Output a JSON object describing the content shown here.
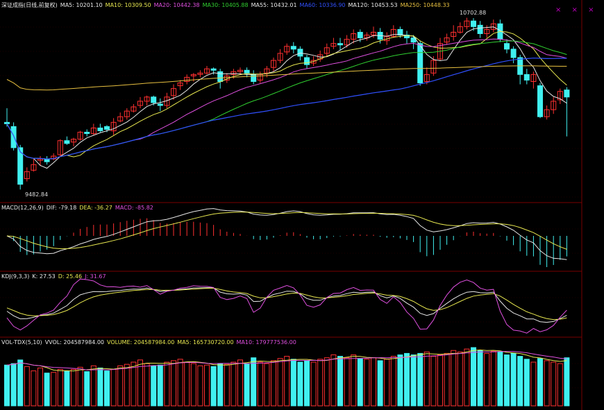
{
  "main": {
    "legend": [
      {
        "text": "深证成指(日线,前复权)",
        "color": "#e8e8e8"
      },
      {
        "text": "MA5: 10201.10",
        "color": "#e8e8e8"
      },
      {
        "text": "MA10: 10309.50",
        "color": "#e8e850"
      },
      {
        "text": "MA20: 10442.38",
        "color": "#e050e0"
      },
      {
        "text": "MA30: 10405.88",
        "color": "#30d030"
      },
      {
        "text": "MA55: 10432.01",
        "color": "#e8e8e8"
      },
      {
        "text": "MA60: 10336.90",
        "color": "#3050ff"
      },
      {
        "text": "MA120: 10453.53",
        "color": "#e8e8e8"
      },
      {
        "text": "MA250: 10448.33",
        "color": "#e8c040"
      }
    ],
    "high_label": "10702.88",
    "low_label": "9482.84"
  },
  "macd": {
    "legend": [
      {
        "text": "MACD(12,26,9)",
        "color": "#e8e8e8"
      },
      {
        "text": "DIF: -79.18",
        "color": "#e8e8e8"
      },
      {
        "text": "DEA: -36.27",
        "color": "#e8e850"
      },
      {
        "text": "MACD: -85.82",
        "color": "#e050e0"
      }
    ]
  },
  "kdj": {
    "legend": [
      {
        "text": "KDJ(9,3,3)",
        "color": "#e8e8e8"
      },
      {
        "text": "K: 27.53",
        "color": "#e8e8e8"
      },
      {
        "text": "D: 25.46",
        "color": "#e8e850"
      },
      {
        "text": "J: 31.67",
        "color": "#e050e0"
      }
    ]
  },
  "vol": {
    "legend": [
      {
        "text": "VOL-TDX(5,10)",
        "color": "#e8e8e8"
      },
      {
        "text": "VVOL: 204587984.00",
        "color": "#e8e8e8"
      },
      {
        "text": "VOLUME: 204587984.00",
        "color": "#e8e850"
      },
      {
        "text": "MA5: 165730720.00",
        "color": "#e8e850"
      },
      {
        "text": "MA10: 179777536.00",
        "color": "#e050e0"
      }
    ]
  },
  "chart_data": {
    "type": "candlestick",
    "colors": {
      "up": "#ff3030",
      "down": "#40f0f0",
      "ma5": "#e8e8e8",
      "ma10": "#e8e850",
      "ma20": "#e050e0",
      "ma30": "#30d030",
      "ma60": "#3050ff",
      "ma250": "#e8c040"
    },
    "candles": [
      [
        9960,
        9950,
        10060,
        9930
      ],
      [
        9930,
        9780,
        9960,
        9760
      ],
      [
        9780,
        9520,
        9800,
        9482.84
      ],
      [
        9560,
        9610,
        9640,
        9540
      ],
      [
        9620,
        9660,
        9700,
        9610
      ],
      [
        9690,
        9700,
        9720,
        9650
      ],
      [
        9700,
        9680,
        9720,
        9660
      ],
      [
        9700,
        9720,
        9740,
        9690
      ],
      [
        9730,
        9830,
        9840,
        9720
      ],
      [
        9830,
        9810,
        9860,
        9800
      ],
      [
        9820,
        9840,
        9850,
        9790
      ],
      [
        9840,
        9890,
        9900,
        9830
      ],
      [
        9890,
        9880,
        9910,
        9860
      ],
      [
        9880,
        9920,
        9950,
        9870
      ],
      [
        9920,
        9900,
        9950,
        9890
      ],
      [
        9930,
        9910,
        9940,
        9890
      ],
      [
        9900,
        9960,
        9990,
        9870
      ],
      [
        9970,
        10000,
        10030,
        9960
      ],
      [
        10000,
        10040,
        10060,
        9980
      ],
      [
        10040,
        10070,
        10090,
        10030
      ],
      [
        10080,
        10110,
        10140,
        10060
      ],
      [
        10110,
        10140,
        10150,
        10080
      ],
      [
        10140,
        10100,
        10150,
        10080
      ],
      [
        10090,
        10080,
        10130,
        10040
      ],
      [
        10080,
        10140,
        10170,
        10060
      ],
      [
        10150,
        10200,
        10230,
        10120
      ],
      [
        10220,
        10240,
        10260,
        10190
      ],
      [
        10250,
        10280,
        10300,
        10230
      ],
      [
        10290,
        10300,
        10310,
        10250
      ],
      [
        10300,
        10310,
        10330,
        10280
      ],
      [
        10310,
        10340,
        10360,
        10300
      ],
      [
        10340,
        10330,
        10350,
        10300
      ],
      [
        10320,
        10250,
        10340,
        10200
      ],
      [
        10260,
        10290,
        10310,
        10240
      ],
      [
        10300,
        10320,
        10340,
        10270
      ],
      [
        10320,
        10330,
        10350,
        10300
      ],
      [
        10330,
        10310,
        10350,
        10280
      ],
      [
        10300,
        10250,
        10330,
        10230
      ],
      [
        10260,
        10300,
        10320,
        10240
      ],
      [
        10310,
        10340,
        10360,
        10280
      ],
      [
        10350,
        10400,
        10420,
        10320
      ],
      [
        10400,
        10450,
        10480,
        10380
      ],
      [
        10460,
        10500,
        10520,
        10440
      ],
      [
        10500,
        10480,
        10530,
        10450
      ],
      [
        10480,
        10430,
        10500,
        10400
      ],
      [
        10420,
        10370,
        10440,
        10340
      ],
      [
        10380,
        10400,
        10430,
        10360
      ],
      [
        10410,
        10440,
        10470,
        10390
      ],
      [
        10450,
        10490,
        10520,
        10430
      ],
      [
        10500,
        10520,
        10560,
        10480
      ],
      [
        10520,
        10510,
        10560,
        10470
      ],
      [
        10510,
        10550,
        10580,
        10490
      ],
      [
        10550,
        10590,
        10620,
        10520
      ],
      [
        10600,
        10560,
        10620,
        10530
      ],
      [
        10560,
        10580,
        10600,
        10540
      ],
      [
        10580,
        10600,
        10640,
        10560
      ],
      [
        10600,
        10550,
        10630,
        10520
      ],
      [
        10540,
        10570,
        10600,
        10510
      ],
      [
        10570,
        10620,
        10650,
        10560
      ],
      [
        10620,
        10580,
        10640,
        10560
      ],
      [
        10580,
        10560,
        10610,
        10520
      ],
      [
        10560,
        10530,
        10580,
        10480
      ],
      [
        10520,
        10240,
        10540,
        10220
      ],
      [
        10250,
        10300,
        10350,
        10230
      ],
      [
        10310,
        10400,
        10430,
        10290
      ],
      [
        10410,
        10520,
        10560,
        10400
      ],
      [
        10530,
        10560,
        10590,
        10510
      ],
      [
        10570,
        10600,
        10650,
        10540
      ],
      [
        10600,
        10640,
        10670,
        10590
      ],
      [
        10640,
        10680,
        10702.88,
        10620
      ],
      [
        10680,
        10640,
        10700,
        10610
      ],
      [
        10650,
        10590,
        10680,
        10560
      ],
      [
        10590,
        10620,
        10650,
        10560
      ],
      [
        10620,
        10660,
        10690,
        10600
      ],
      [
        10660,
        10550,
        10690,
        10530
      ],
      [
        10520,
        10480,
        10550,
        10450
      ],
      [
        10480,
        10420,
        10500,
        10380
      ],
      [
        10420,
        10300,
        10440,
        10230
      ],
      [
        10300,
        10260,
        10340,
        10230
      ],
      [
        10250,
        10300,
        10320,
        10200
      ],
      [
        10220,
        10000,
        10240,
        9990
      ],
      [
        10000,
        10050,
        10080,
        9980
      ],
      [
        10050,
        10110,
        10140,
        10020
      ],
      [
        10120,
        10180,
        10200,
        10090
      ],
      [
        10190,
        10140,
        10210,
        9860
      ]
    ],
    "volume": [
      56,
      58,
      63,
      54,
      48,
      52,
      45,
      46,
      50,
      48,
      50,
      53,
      47,
      55,
      52,
      48,
      50,
      55,
      57,
      60,
      63,
      58,
      55,
      56,
      60,
      62,
      64,
      60,
      58,
      55,
      56,
      54,
      58,
      57,
      60,
      63,
      58,
      66,
      60,
      58,
      62,
      65,
      68,
      64,
      60,
      62,
      60,
      64,
      66,
      70,
      68,
      66,
      70,
      65,
      64,
      66,
      62,
      64,
      68,
      70,
      72,
      70,
      72,
      74,
      68,
      70,
      72,
      76,
      74,
      78,
      80,
      76,
      72,
      75,
      74,
      70,
      72,
      68,
      64,
      60,
      65,
      62,
      60,
      58,
      66
    ]
  }
}
